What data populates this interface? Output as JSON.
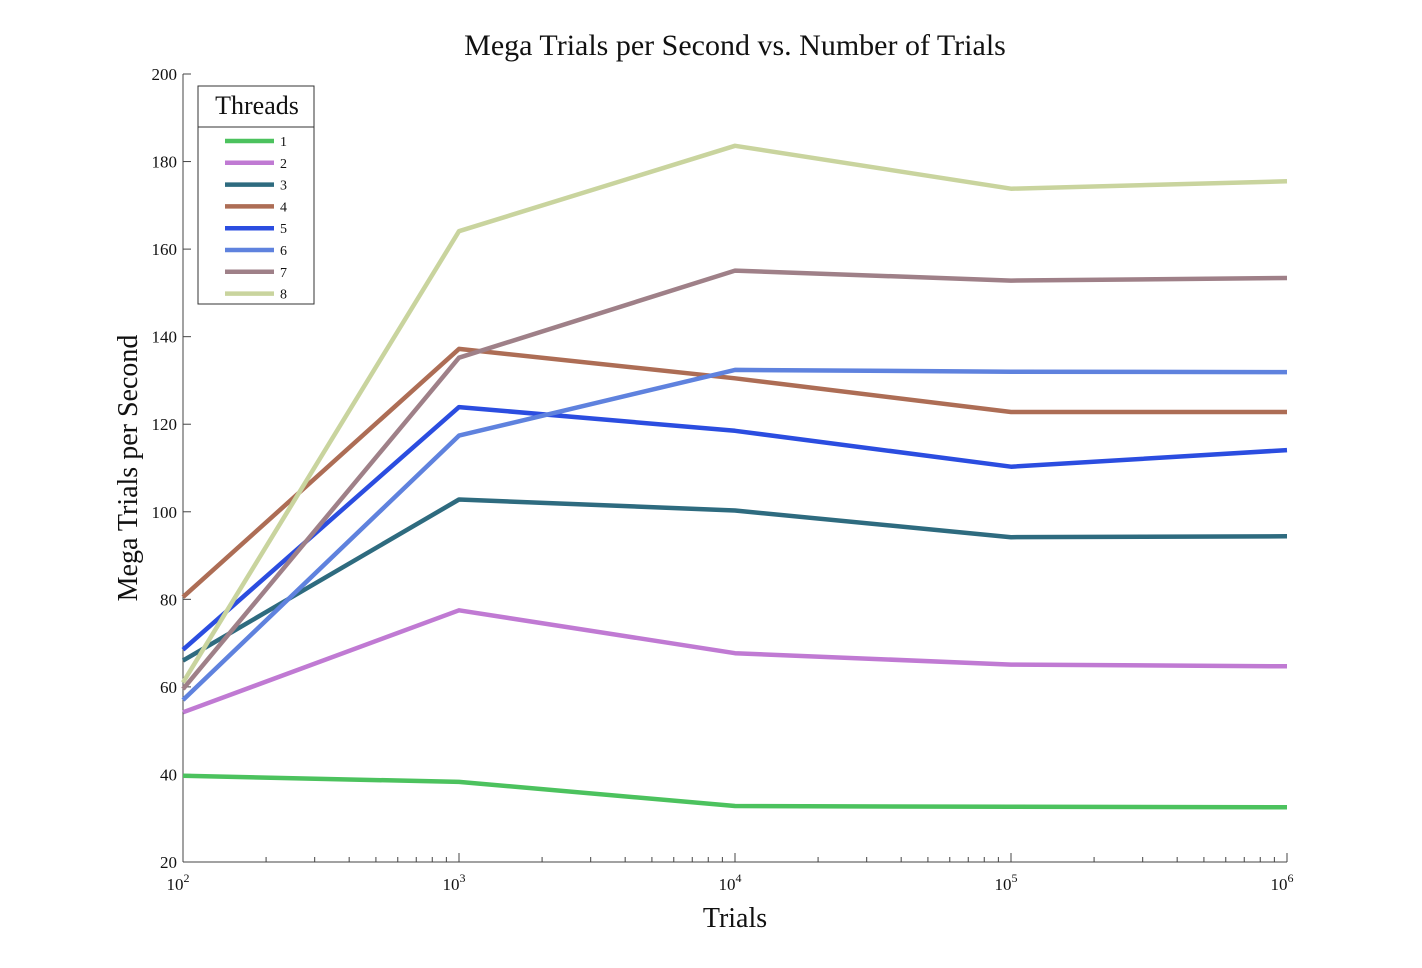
{
  "chart_data": {
    "type": "line",
    "title": "Mega Trials per Second vs. Number of Trials",
    "xlabel": "Trials",
    "ylabel": "Mega Trials per Second",
    "x_scale": "log",
    "xlim": [
      100,
      1000000
    ],
    "ylim": [
      20,
      200
    ],
    "grid": false,
    "legend": {
      "title": "Threads",
      "position": "top-left"
    },
    "x": [
      100,
      1000,
      10000,
      100000,
      1000000
    ],
    "x_ticks": [
      {
        "base": "10",
        "exp": "2"
      },
      {
        "base": "10",
        "exp": "3"
      },
      {
        "base": "10",
        "exp": "4"
      },
      {
        "base": "10",
        "exp": "5"
      },
      {
        "base": "10",
        "exp": "6"
      }
    ],
    "y_ticks": [
      "20",
      "40",
      "60",
      "80",
      "100",
      "120",
      "140",
      "160",
      "180",
      "200"
    ],
    "series": [
      {
        "name": "1",
        "color": "#4cc25e",
        "values": [
          39.7,
          38.3,
          32.8,
          32.6,
          32.5
        ]
      },
      {
        "name": "2",
        "color": "#c07ad3",
        "values": [
          54.2,
          77.5,
          67.7,
          65.1,
          64.7
        ]
      },
      {
        "name": "3",
        "color": "#2e6b7f",
        "values": [
          66.0,
          102.8,
          100.3,
          94.2,
          94.4
        ]
      },
      {
        "name": "4",
        "color": "#ad6d55",
        "values": [
          80.5,
          137.2,
          130.5,
          122.8,
          122.8
        ]
      },
      {
        "name": "5",
        "color": "#2b4de0",
        "values": [
          68.5,
          123.9,
          118.5,
          110.3,
          114.1
        ]
      },
      {
        "name": "6",
        "color": "#5f82de",
        "values": [
          57.0,
          117.4,
          132.4,
          132.0,
          131.9
        ]
      },
      {
        "name": "7",
        "color": "#9f8088",
        "values": [
          59.5,
          135.2,
          155.1,
          152.8,
          153.4
        ]
      },
      {
        "name": "8",
        "color": "#c9d49e",
        "values": [
          61.0,
          164.1,
          183.6,
          173.8,
          175.5
        ]
      }
    ]
  }
}
